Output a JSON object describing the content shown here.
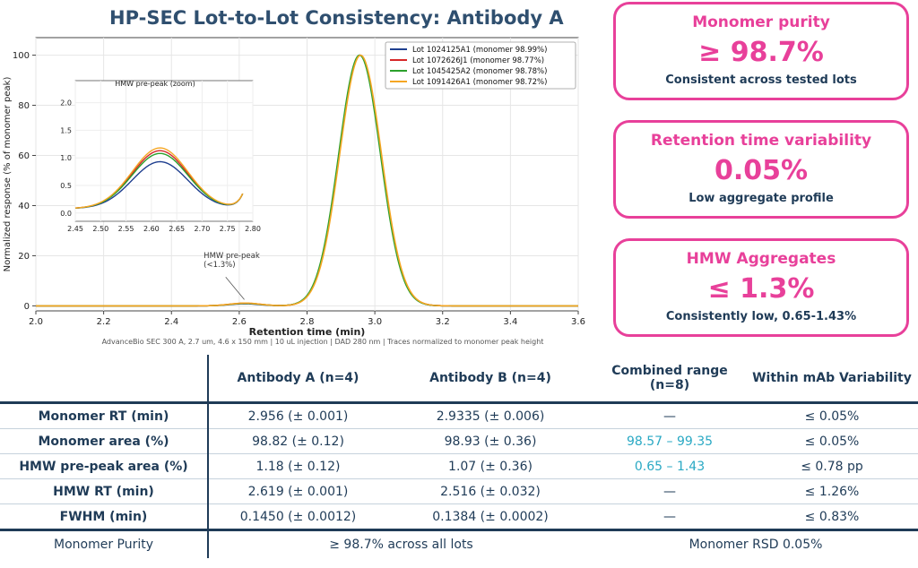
{
  "title": "HP-SEC Lot-to-Lot Consistency: Antibody A",
  "footnote": "AdvanceBio SEC 300 A, 2.7 um, 4.6 x 150 mm  |  10 uL injection  |  DAD 280 nm  |  Traces normalized to monomer peak height",
  "chart_data": [
    {
      "type": "line",
      "title": "",
      "xlabel": "Retention time (min)",
      "ylabel": "Normalized response (% of monomer peak)",
      "xlim": [
        2.0,
        3.6
      ],
      "ylim": [
        -2,
        107
      ],
      "xticks": [
        2.0,
        2.2,
        2.4,
        2.6,
        2.8,
        3.0,
        3.2,
        3.4,
        3.6
      ],
      "yticks": [
        0,
        20,
        40,
        60,
        80,
        100
      ],
      "grid": true,
      "legend_position": "top-right",
      "annotation": "HMW pre-peak\n(<1.3%)",
      "series": [
        {
          "name": "Lot 1024125A1   (monomer 98.99%)",
          "color": "#1f3f8f",
          "peak_rt": 2.956,
          "prepeak": 0.85
        },
        {
          "name": "Lot 1072626J1   (monomer 98.77%)",
          "color": "#d62728",
          "peak_rt": 2.957,
          "prepeak": 1.05
        },
        {
          "name": "Lot 1045425A2   (monomer 98.78%)",
          "color": "#2ca02c",
          "peak_rt": 2.955,
          "prepeak": 1.0
        },
        {
          "name": "Lot 1091426A1   (monomer 98.72%)",
          "color": "#f5a623",
          "peak_rt": 2.958,
          "prepeak": 1.1
        }
      ]
    },
    {
      "type": "line",
      "title": "HMW pre-peak (zoom)",
      "xlim": [
        2.45,
        2.8
      ],
      "ylim": [
        -0.15,
        2.4
      ],
      "xticks": [
        2.45,
        2.5,
        2.55,
        2.6,
        2.65,
        2.7,
        2.75,
        2.8
      ],
      "yticks": [
        0.0,
        0.5,
        1.0,
        1.5,
        2.0
      ],
      "grid": true
    }
  ],
  "kpis": [
    {
      "title": "Monomer purity",
      "value": "≥ 98.7%",
      "sub": "Consistent across tested lots"
    },
    {
      "title": "Retention time variability",
      "value": "0.05%",
      "sub": "Low aggregate profile"
    },
    {
      "title": "HMW Aggregates",
      "value": "≤ 1.3%",
      "sub": "Consistently low, 0.65-1.43%"
    }
  ],
  "table": {
    "headers": [
      "",
      "Antibody A (n=4)",
      "Antibody B (n=4)",
      "Combined range (n=8)",
      "Within mAb Variability"
    ],
    "rows": [
      [
        "Monomer RT (min)",
        "2.956 (± 0.001)",
        "2.9335 (± 0.006)",
        "—",
        "≤ 0.05%"
      ],
      [
        "Monomer area (%)",
        "98.82 (± 0.12)",
        "98.93 (± 0.36)",
        "98.57 – 99.35",
        "≤ 0.05%"
      ],
      [
        "HMW pre-peak area (%)",
        "1.18 (± 0.12)",
        "1.07 (± 0.36)",
        "0.65 – 1.43",
        "≤ 0.78 pp"
      ],
      [
        "HMW RT (min)",
        "2.619 (± 0.001)",
        "2.516 (± 0.032)",
        "—",
        "≤ 1.26%"
      ],
      [
        "FWHM (min)",
        "0.1450 (± 0.0012)",
        "0.1384 (± 0.0002)",
        "—",
        "≤ 0.83%"
      ]
    ],
    "summary": [
      "Monomer Purity",
      "≥ 98.7% across all lots",
      "Monomer RSD 0.05%"
    ]
  }
}
